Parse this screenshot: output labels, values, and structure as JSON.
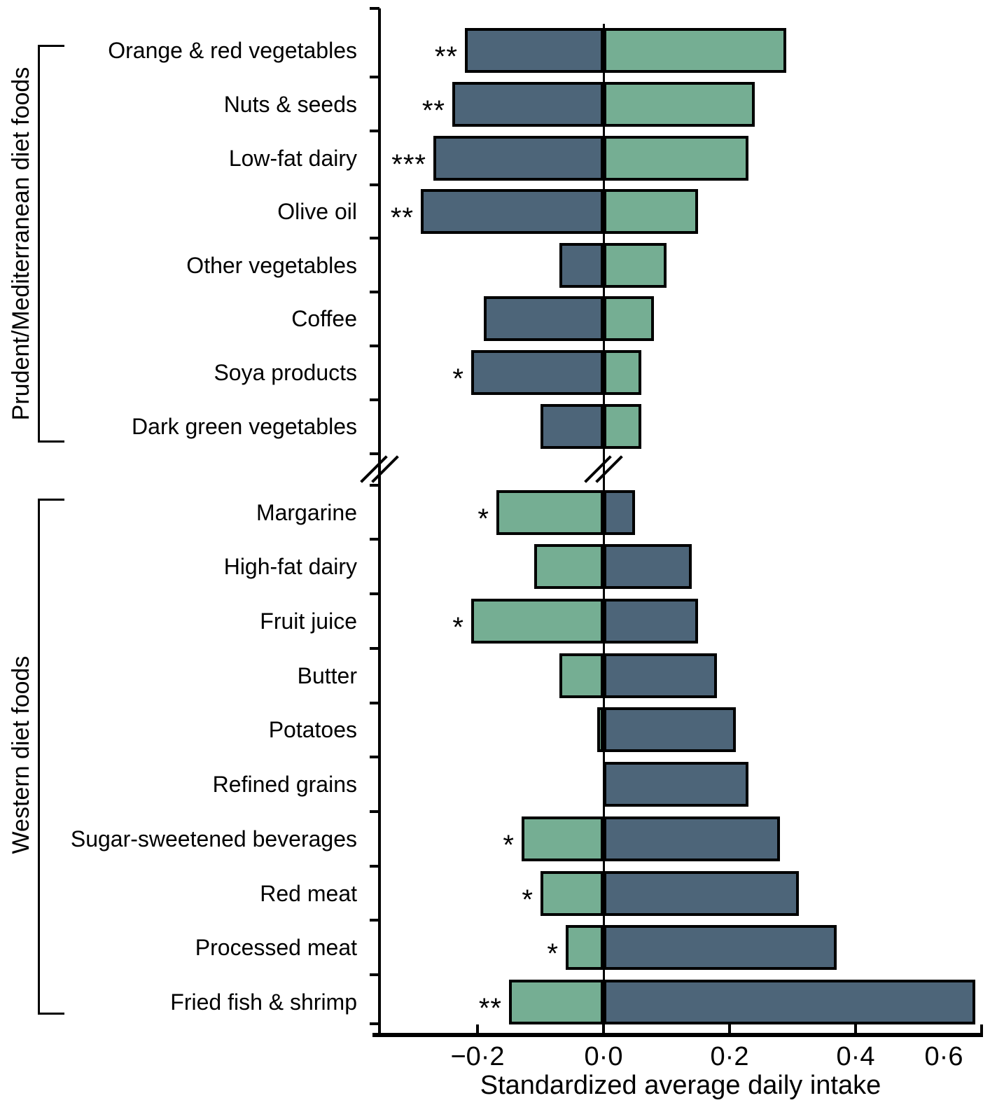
{
  "chart_data": {
    "type": "bar",
    "orientation": "horizontal-diverging",
    "title": "",
    "xlabel": "Standardized average daily intake",
    "ylabel": "",
    "xlim": [
      -0.37,
      0.6
    ],
    "grid": false,
    "axis_break_between_groups": true,
    "bar_colors": {
      "dark_slate": "#4d6579",
      "green": "#75ae93"
    },
    "axis_color": "#000000",
    "x_ticks": [
      {
        "value": -0.2,
        "label": "−0·2"
      },
      {
        "value": 0.0,
        "label": "0·0"
      },
      {
        "value": 0.2,
        "label": "0·2"
      },
      {
        "value": 0.4,
        "label": "0·4"
      },
      {
        "value": 0.6,
        "label": "0·6"
      }
    ],
    "groups": [
      {
        "label": "Prudent/Mediterranean diet foods",
        "rows": [
          {
            "label": "Orange & red vegetables",
            "negative": {
              "value": -0.22,
              "color": "dark_slate"
            },
            "positive": {
              "value": 0.29,
              "color": "green"
            },
            "significance": "**"
          },
          {
            "label": "Nuts & seeds",
            "negative": {
              "value": -0.24,
              "color": "dark_slate"
            },
            "positive": {
              "value": 0.24,
              "color": "green"
            },
            "significance": "**"
          },
          {
            "label": "Low-fat dairy",
            "negative": {
              "value": -0.27,
              "color": "dark_slate"
            },
            "positive": {
              "value": 0.23,
              "color": "green"
            },
            "significance": "***"
          },
          {
            "label": "Olive oil",
            "negative": {
              "value": -0.29,
              "color": "dark_slate"
            },
            "positive": {
              "value": 0.15,
              "color": "green"
            },
            "significance": "**"
          },
          {
            "label": "Other vegetables",
            "negative": {
              "value": -0.07,
              "color": "dark_slate"
            },
            "positive": {
              "value": 0.1,
              "color": "green"
            },
            "significance": ""
          },
          {
            "label": "Coffee",
            "negative": {
              "value": -0.19,
              "color": "dark_slate"
            },
            "positive": {
              "value": 0.08,
              "color": "green"
            },
            "significance": ""
          },
          {
            "label": "Soya products",
            "negative": {
              "value": -0.21,
              "color": "dark_slate"
            },
            "positive": {
              "value": 0.06,
              "color": "green"
            },
            "significance": "*"
          },
          {
            "label": "Dark green vegetables",
            "negative": {
              "value": -0.1,
              "color": "dark_slate"
            },
            "positive": {
              "value": 0.06,
              "color": "green"
            },
            "significance": ""
          }
        ]
      },
      {
        "label": "Western diet foods",
        "rows": [
          {
            "label": "Margarine",
            "negative": {
              "value": -0.17,
              "color": "green"
            },
            "positive": {
              "value": 0.05,
              "color": "dark_slate"
            },
            "significance": "*"
          },
          {
            "label": "High-fat dairy",
            "negative": {
              "value": -0.11,
              "color": "green"
            },
            "positive": {
              "value": 0.14,
              "color": "dark_slate"
            },
            "significance": ""
          },
          {
            "label": "Fruit juice",
            "negative": {
              "value": -0.21,
              "color": "green"
            },
            "positive": {
              "value": 0.15,
              "color": "dark_slate"
            },
            "significance": "*"
          },
          {
            "label": "Butter",
            "negative": {
              "value": -0.07,
              "color": "green"
            },
            "positive": {
              "value": 0.18,
              "color": "dark_slate"
            },
            "significance": ""
          },
          {
            "label": "Potatoes",
            "negative": {
              "value": -0.01,
              "color": "green"
            },
            "positive": {
              "value": 0.21,
              "color": "dark_slate"
            },
            "significance": ""
          },
          {
            "label": "Refined grains",
            "negative": {
              "value": 0.0,
              "color": "green"
            },
            "positive": {
              "value": 0.23,
              "color": "dark_slate"
            },
            "significance": ""
          },
          {
            "label": "Sugar-sweetened beverages",
            "negative": {
              "value": -0.13,
              "color": "green"
            },
            "positive": {
              "value": 0.28,
              "color": "dark_slate"
            },
            "significance": "*"
          },
          {
            "label": "Red meat",
            "negative": {
              "value": -0.1,
              "color": "green"
            },
            "positive": {
              "value": 0.31,
              "color": "dark_slate"
            },
            "significance": "*"
          },
          {
            "label": "Processed meat",
            "negative": {
              "value": -0.06,
              "color": "green"
            },
            "positive": {
              "value": 0.37,
              "color": "dark_slate"
            },
            "significance": "*"
          },
          {
            "label": "Fried fish & shrimp",
            "negative": {
              "value": -0.15,
              "color": "green"
            },
            "positive": {
              "value": 0.59,
              "color": "dark_slate"
            },
            "significance": "**"
          }
        ]
      }
    ]
  }
}
